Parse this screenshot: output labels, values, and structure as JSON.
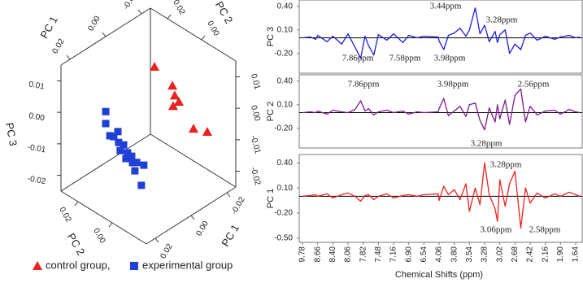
{
  "chart_data": [
    {
      "type": "scatter3d",
      "xlabel": "PC 1",
      "ylabel": "PC 2",
      "zlabel": "PC 3",
      "xlim": [
        -0.025,
        0.025
      ],
      "ylim": [
        -0.02,
        0.03
      ],
      "zlim": [
        -0.025,
        0.015
      ],
      "xticks": [
        0.02,
        {
          "value": 0,
          "label": "0.00"
        },
        -0.02
      ],
      "yticks": [
        0.02,
        {
          "value": 0,
          "label": "0.00"
        }
      ],
      "zticks": [
        0.01,
        {
          "value": 0,
          "label": "0.00"
        },
        -0.01,
        -0.02
      ],
      "series": [
        {
          "name": "control group,",
          "color": "#e8231f",
          "marker": "triangle",
          "x": [
            -0.0082,
            -0.0182,
            -0.0195,
            -0.0218,
            -0.0186,
            -0.0109,
            -0.0186
          ],
          "y": [
            0.01,
            0.01,
            0.01,
            0.01,
            0.01,
            -0.01,
            -0.01
          ],
          "z": [
            0.0092,
            -0.0004,
            -0.004,
            -0.0068,
            -0.007,
            -0.0047,
            -0.0085
          ]
        },
        {
          "name": "experimental group",
          "color": "#1f3fd6",
          "marker": "square",
          "x": [
            0.0143,
            0.0143,
            0.0075,
            0.0098,
            0.0071,
            0.0043,
            0.0062,
            0.0021,
            -0.0002,
            0.003,
            -0.0007,
            -0.003,
            -0.002,
            -0.007,
            0.0087,
            0.012
          ],
          "y": [
            0.015,
            0.015,
            0.015,
            0.015,
            0.015,
            0.015,
            0.015,
            0.015,
            0.015,
            0.015,
            0.015,
            0.015,
            0.015,
            0.015,
            0,
            0.015
          ],
          "z": [
            0.0014,
            -0.0024,
            -0.0074,
            -0.0082,
            -0.011,
            -0.0128,
            -0.0139,
            -0.0161,
            -0.018,
            -0.0176,
            -0.0202,
            -0.021,
            -0.0233,
            -0.0233,
            -0.019,
            -0.0071
          ]
        }
      ]
    },
    {
      "type": "line",
      "ylabel": "PC 3",
      "color": "#1f1fd6",
      "ylim": [
        -0.45,
        0.48
      ],
      "yticks": [
        {
          "value": 0.4,
          "label": "0.40"
        },
        {
          "value": 0.1,
          "label": "0.10"
        },
        {
          "value": -0.2,
          "label": "-0.20"
        }
      ],
      "x": [
        9.78,
        9.2,
        8.8,
        8.66,
        8.5,
        8.4,
        8.2,
        8.06,
        7.95,
        7.86,
        7.78,
        7.7,
        7.58,
        7.48,
        7.3,
        7.16,
        7.0,
        6.9,
        6.7,
        6.54,
        4.2,
        4.06,
        3.98,
        3.9,
        3.8,
        3.7,
        3.6,
        3.54,
        3.44,
        3.36,
        3.28,
        3.2,
        3.1,
        3.06,
        3.02,
        2.9,
        2.8,
        2.68,
        2.58,
        2.5,
        2.42,
        2.3,
        2.16,
        2.0,
        1.9,
        1.75,
        1.64,
        1.55
      ],
      "values": [
        0.0,
        0.01,
        -0.02,
        0.03,
        -0.05,
        0.02,
        -0.08,
        0.05,
        -0.12,
        -0.26,
        0.02,
        -0.1,
        -0.22,
        0.04,
        -0.03,
        0.05,
        -0.06,
        0.03,
        0.0,
        0.02,
        0.01,
        -0.04,
        -0.15,
        0.03,
        0.06,
        0.12,
        0.02,
        0.1,
        0.38,
        0.05,
        0.16,
        -0.05,
        0.08,
        -0.06,
        0.04,
        0.1,
        -0.2,
        -0.08,
        -0.15,
        0.03,
        0.06,
        -0.03,
        0.02,
        -0.02,
        0.01,
        0.03,
        0.0,
        0.01
      ],
      "annotations": [
        "3.44ppm",
        "3.28ppm",
        "7.86ppm",
        "7.58ppm",
        "3.98ppm"
      ]
    },
    {
      "type": "line",
      "ylabel": "PC 2",
      "color": "#7b1a8c",
      "ylim": [
        -0.45,
        0.48
      ],
      "yticks": [
        {
          "value": 0.4,
          "label": "0.40"
        },
        {
          "value": 0.1,
          "label": "0.10"
        },
        {
          "value": -0.2,
          "label": "-0.20"
        }
      ],
      "x": [
        9.78,
        9.2,
        8.8,
        8.66,
        8.5,
        8.4,
        8.2,
        8.06,
        7.95,
        7.86,
        7.78,
        7.7,
        7.58,
        7.48,
        7.3,
        7.16,
        7.0,
        6.9,
        6.7,
        6.54,
        4.2,
        4.06,
        3.98,
        3.9,
        3.8,
        3.7,
        3.6,
        3.54,
        3.44,
        3.36,
        3.28,
        3.2,
        3.1,
        3.06,
        3.02,
        2.9,
        2.8,
        2.68,
        2.58,
        2.5,
        2.42,
        2.3,
        2.16,
        2.0,
        1.9,
        1.75,
        1.64,
        1.55
      ],
      "values": [
        0.0,
        0.01,
        0.0,
        0.02,
        -0.02,
        0.03,
        0.01,
        0.0,
        0.04,
        0.15,
        0.02,
        0.05,
        -0.03,
        0.01,
        0.03,
        0.0,
        0.02,
        -0.02,
        0.01,
        0.0,
        0.01,
        0.05,
        0.18,
        -0.04,
        0.02,
        0.08,
        -0.05,
        0.1,
        0.12,
        -0.1,
        -0.22,
        0.06,
        -0.12,
        0.1,
        -0.08,
        0.16,
        -0.15,
        0.22,
        0.3,
        -0.12,
        0.08,
        -0.03,
        0.02,
        0.03,
        -0.02,
        0.04,
        0.01,
        0.0
      ],
      "annotations": [
        "7.86ppm",
        "3.98ppm",
        "2.56ppm",
        "3.28ppm"
      ]
    },
    {
      "type": "line",
      "ylabel": "PC 1",
      "xlabel": "Chemical Shifts (ppm)",
      "color": "#e8231f",
      "ylim": [
        -0.55,
        0.5
      ],
      "yticks": [
        {
          "value": 0.4,
          "label": "0.40"
        },
        {
          "value": 0.1,
          "label": "0.10"
        },
        {
          "value": -0.2,
          "label": "-0.20"
        },
        {
          "value": -0.5,
          "label": "-0.50"
        }
      ],
      "xlim": [
        9.85,
        1.5
      ],
      "xticks": [
        9.78,
        8.66,
        {
          "value": 8.4,
          "label": "8.40"
        },
        8.06,
        7.82,
        7.48,
        7.16,
        {
          "value": 6.9,
          "label": "6.90"
        },
        6.54,
        4.06,
        {
          "value": 3.8,
          "label": "3.80"
        },
        3.54,
        3.28,
        3.02,
        2.68,
        2.42,
        2.16,
        {
          "value": 1.9,
          "label": "1.90"
        },
        1.64
      ],
      "x": [
        9.78,
        9.2,
        8.8,
        8.66,
        8.5,
        8.4,
        8.2,
        8.06,
        7.95,
        7.86,
        7.78,
        7.7,
        7.58,
        7.48,
        7.3,
        7.16,
        7.0,
        6.9,
        6.7,
        6.54,
        4.2,
        4.06,
        3.98,
        3.9,
        3.8,
        3.7,
        3.6,
        3.54,
        3.44,
        3.36,
        3.28,
        3.2,
        3.1,
        3.06,
        3.02,
        2.9,
        2.8,
        2.68,
        2.58,
        2.5,
        2.42,
        2.3,
        2.16,
        2.0,
        1.9,
        1.75,
        1.64,
        1.55
      ],
      "values": [
        0.0,
        0.01,
        0.02,
        0.0,
        0.03,
        -0.02,
        0.02,
        0.04,
        0.0,
        -0.06,
        0.01,
        0.02,
        -0.04,
        0.0,
        0.03,
        -0.02,
        0.01,
        0.02,
        0.0,
        0.02,
        0.03,
        -0.05,
        0.12,
        0.02,
        0.08,
        -0.04,
        0.15,
        -0.18,
        0.1,
        -0.1,
        0.4,
        0.02,
        -0.15,
        -0.3,
        0.2,
        -0.12,
        0.15,
        0.3,
        -0.38,
        0.1,
        -0.08,
        0.04,
        -0.02,
        0.03,
        0.0,
        0.05,
        0.02,
        0.0
      ],
      "annotations": [
        "3.28ppm",
        "3.06ppm",
        "2.58ppm"
      ]
    }
  ]
}
